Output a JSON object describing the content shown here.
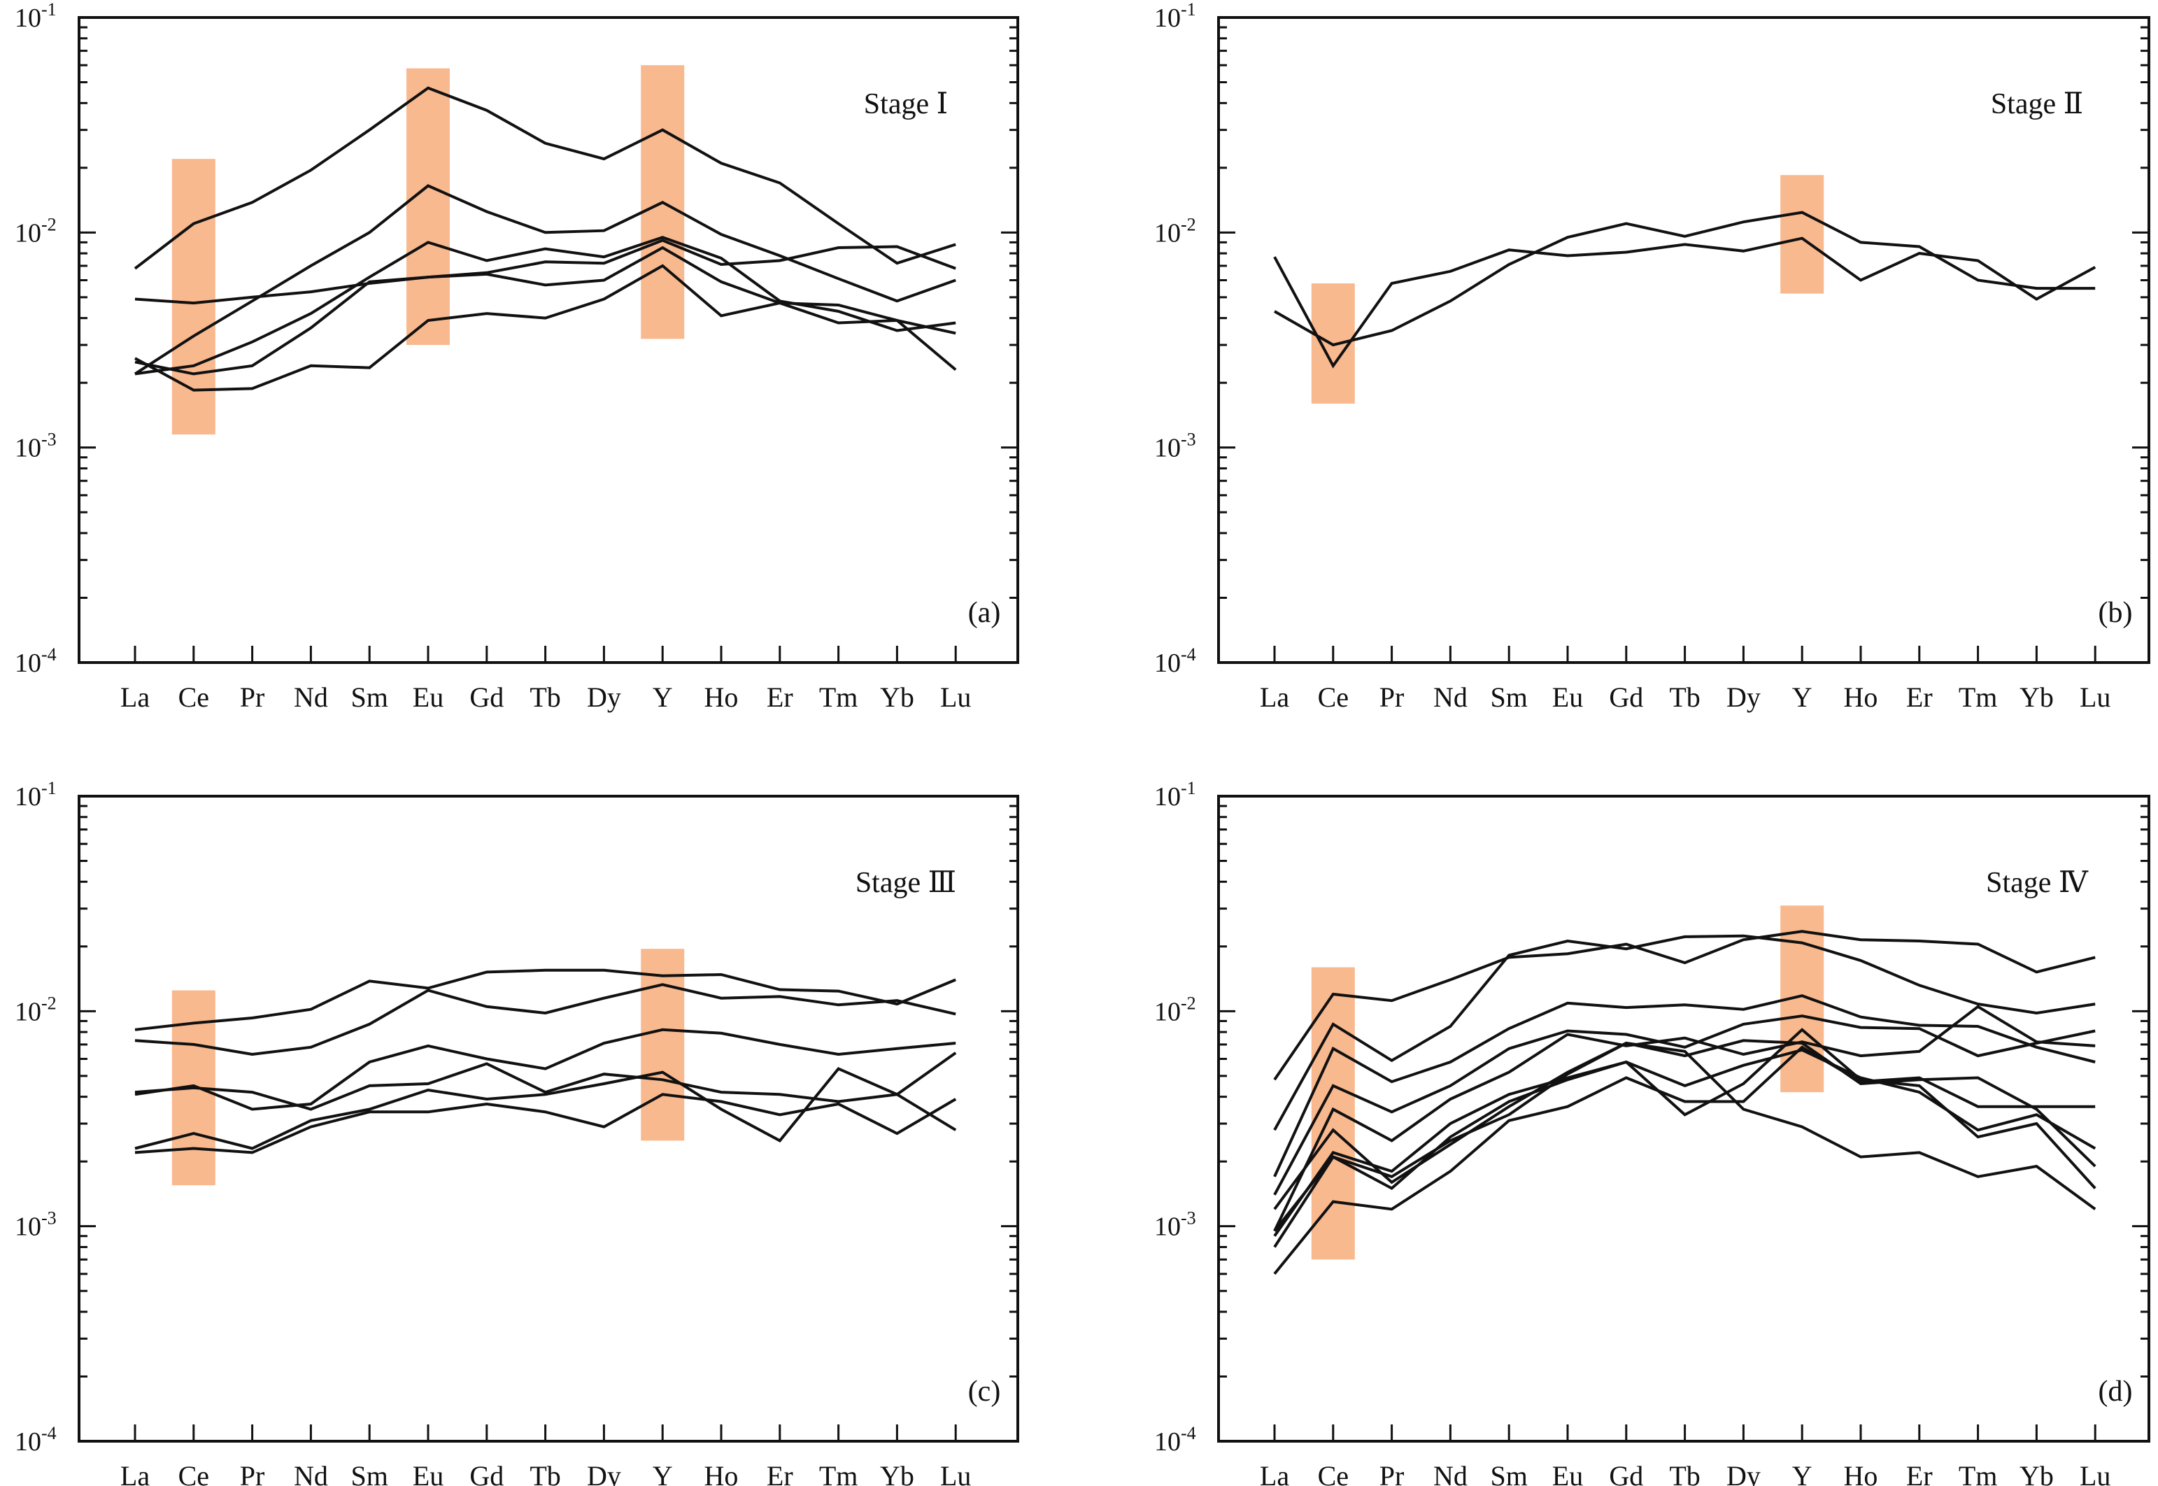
{
  "figure": {
    "accent_color": "#f9b98f",
    "line_color": "#111111",
    "x_categories": [
      "La",
      "Ce",
      "Pr",
      "Nd",
      "Sm",
      "Eu",
      "Gd",
      "Tb",
      "Dy",
      "Y",
      "Ho",
      "Er",
      "Tm",
      "Yb",
      "Lu"
    ],
    "y_tick_labels": [
      {
        "base": "10",
        "exp": "-1"
      },
      {
        "base": "10",
        "exp": "-2"
      },
      {
        "base": "10",
        "exp": "-3"
      },
      {
        "base": "10",
        "exp": "-4"
      }
    ]
  },
  "chart_data": [
    {
      "type": "line",
      "title": "Stage Ⅰ",
      "panel_label": "(a)",
      "y_scale": "log",
      "ylim": [
        0.0001,
        0.1
      ],
      "grid": false,
      "categories": [
        "La",
        "Ce",
        "Pr",
        "Nd",
        "Sm",
        "Eu",
        "Gd",
        "Tb",
        "Dy",
        "Y",
        "Ho",
        "Er",
        "Tm",
        "Yb",
        "Lu"
      ],
      "highlight_bands": [
        {
          "category": "Ce",
          "range": [
            0.00115,
            0.022
          ]
        },
        {
          "category": "Eu",
          "range": [
            0.003,
            0.058
          ]
        },
        {
          "category": "Y",
          "range": [
            0.0032,
            0.06
          ]
        }
      ],
      "series": [
        {
          "values": [
            0.0068,
            0.011,
            0.0138,
            0.0195,
            0.03,
            0.047,
            0.037,
            0.026,
            0.022,
            0.03,
            0.021,
            0.017,
            0.011,
            0.0072,
            0.0088
          ]
        },
        {
          "values": [
            0.0022,
            0.0033,
            0.0048,
            0.007,
            0.01,
            0.0165,
            0.0125,
            0.01,
            0.0102,
            0.0138,
            0.0098,
            0.0078,
            0.0061,
            0.0048,
            0.006
          ]
        },
        {
          "values": [
            0.0049,
            0.0047,
            0.005,
            0.0053,
            0.0058,
            0.0062,
            0.0065,
            0.0073,
            0.0072,
            0.0092,
            0.0071,
            0.0074,
            0.0085,
            0.0086,
            0.0068
          ]
        },
        {
          "values": [
            0.0022,
            0.0024,
            0.0031,
            0.0042,
            0.0062,
            0.009,
            0.0074,
            0.0084,
            0.0077,
            0.0095,
            0.0076,
            0.0048,
            0.0043,
            0.0035,
            0.0038
          ]
        },
        {
          "values": [
            0.0025,
            0.0022,
            0.0024,
            0.0036,
            0.0059,
            0.0062,
            0.0064,
            0.0057,
            0.006,
            0.0085,
            0.0059,
            0.0047,
            0.0046,
            0.0039,
            0.0023
          ]
        },
        {
          "values": [
            0.0026,
            0.00185,
            0.00188,
            0.0024,
            0.00235,
            0.0039,
            0.0042,
            0.004,
            0.0049,
            0.007,
            0.0041,
            0.0047,
            0.0038,
            0.0039,
            0.0034
          ]
        }
      ]
    },
    {
      "type": "line",
      "title": "Stage Ⅱ",
      "panel_label": "(b)",
      "y_scale": "log",
      "ylim": [
        0.0001,
        0.1
      ],
      "grid": false,
      "categories": [
        "La",
        "Ce",
        "Pr",
        "Nd",
        "Sm",
        "Eu",
        "Gd",
        "Tb",
        "Dy",
        "Y",
        "Ho",
        "Er",
        "Tm",
        "Yb",
        "Lu"
      ],
      "highlight_bands": [
        {
          "category": "Ce",
          "range": [
            0.0016,
            0.0058
          ]
        },
        {
          "category": "Y",
          "range": [
            0.0052,
            0.0185
          ]
        }
      ],
      "series": [
        {
          "values": [
            0.0077,
            0.0024,
            0.0058,
            0.0066,
            0.0083,
            0.0078,
            0.0081,
            0.0088,
            0.0082,
            0.0094,
            0.006,
            0.008,
            0.0074,
            0.0049,
            0.0069
          ]
        },
        {
          "values": [
            0.0043,
            0.003,
            0.0035,
            0.0048,
            0.0071,
            0.0095,
            0.011,
            0.0096,
            0.0112,
            0.0124,
            0.009,
            0.0086,
            0.006,
            0.0055,
            0.0055
          ]
        }
      ]
    },
    {
      "type": "line",
      "title": "Stage Ⅲ",
      "panel_label": "(c)",
      "y_scale": "log",
      "ylim": [
        0.0001,
        0.1
      ],
      "grid": false,
      "categories": [
        "La",
        "Ce",
        "Pr",
        "Nd",
        "Sm",
        "Eu",
        "Gd",
        "Tb",
        "Dy",
        "Y",
        "Ho",
        "Er",
        "Tm",
        "Yb",
        "Lu"
      ],
      "highlight_bands": [
        {
          "category": "Ce",
          "range": [
            0.00155,
            0.0125
          ]
        },
        {
          "category": "Y",
          "range": [
            0.0025,
            0.0195
          ]
        }
      ],
      "series": [
        {
          "values": [
            0.0082,
            0.0088,
            0.0093,
            0.0102,
            0.0138,
            0.0128,
            0.0152,
            0.0155,
            0.0155,
            0.0146,
            0.0148,
            0.0126,
            0.0124,
            0.0108,
            0.014
          ]
        },
        {
          "values": [
            0.0073,
            0.007,
            0.0063,
            0.0068,
            0.0087,
            0.0125,
            0.0105,
            0.0098,
            0.0115,
            0.0133,
            0.0115,
            0.0117,
            0.0107,
            0.0112,
            0.0097
          ]
        },
        {
          "values": [
            0.0041,
            0.0045,
            0.0035,
            0.0037,
            0.0058,
            0.0069,
            0.006,
            0.0054,
            0.0071,
            0.0082,
            0.0079,
            0.007,
            0.0063,
            0.0067,
            0.0071
          ]
        },
        {
          "values": [
            0.0042,
            0.0044,
            0.0042,
            0.0035,
            0.0045,
            0.0046,
            0.0057,
            0.0042,
            0.0051,
            0.0048,
            0.0042,
            0.0041,
            0.0038,
            0.0041,
            0.0064
          ]
        },
        {
          "values": [
            0.0023,
            0.0027,
            0.0023,
            0.0031,
            0.0035,
            0.0043,
            0.0039,
            0.0041,
            0.0046,
            0.0052,
            0.0035,
            0.0025,
            0.0054,
            0.0041,
            0.0028
          ]
        },
        {
          "values": [
            0.0022,
            0.0023,
            0.0022,
            0.0029,
            0.0034,
            0.0034,
            0.0037,
            0.0034,
            0.0029,
            0.0041,
            0.0038,
            0.0033,
            0.0037,
            0.0027,
            0.0039
          ]
        }
      ]
    },
    {
      "type": "line",
      "title": "Stage Ⅳ",
      "panel_label": "(d)",
      "y_scale": "log",
      "ylim": [
        0.0001,
        0.1
      ],
      "grid": false,
      "categories": [
        "La",
        "Ce",
        "Pr",
        "Nd",
        "Sm",
        "Eu",
        "Gd",
        "Tb",
        "Dy",
        "Y",
        "Ho",
        "Er",
        "Tm",
        "Yb",
        "Lu"
      ],
      "highlight_bands": [
        {
          "category": "Ce",
          "range": [
            0.0007,
            0.016
          ]
        },
        {
          "category": "Y",
          "range": [
            0.0042,
            0.031
          ]
        }
      ],
      "series": [
        {
          "values": [
            0.0048,
            0.012,
            0.0112,
            0.014,
            0.0178,
            0.0185,
            0.0205,
            0.0168,
            0.0215,
            0.0235,
            0.0215,
            0.0212,
            0.0205,
            0.0152,
            0.0178
          ]
        },
        {
          "values": [
            0.0028,
            0.0087,
            0.0059,
            0.0085,
            0.0182,
            0.0212,
            0.0195,
            0.0222,
            0.0224,
            0.0208,
            0.0172,
            0.0132,
            0.0108,
            0.0098,
            0.0108
          ]
        },
        {
          "values": [
            0.0017,
            0.0067,
            0.0047,
            0.0058,
            0.0083,
            0.0109,
            0.0104,
            0.0107,
            0.0102,
            0.0118,
            0.0094,
            0.0086,
            0.0085,
            0.0068,
            0.0058
          ]
        },
        {
          "values": [
            0.0014,
            0.0045,
            0.0034,
            0.0045,
            0.0067,
            0.0081,
            0.0078,
            0.0068,
            0.0087,
            0.0095,
            0.0084,
            0.0083,
            0.0062,
            0.0071,
            0.0081
          ]
        },
        {
          "values": [
            0.00095,
            0.0035,
            0.0025,
            0.0039,
            0.0052,
            0.0078,
            0.0069,
            0.0075,
            0.0063,
            0.0072,
            0.0062,
            0.0065,
            0.0105,
            0.0072,
            0.0069
          ]
        },
        {
          "values": [
            0.0012,
            0.0028,
            0.0016,
            0.0024,
            0.0036,
            0.0052,
            0.0071,
            0.0062,
            0.0073,
            0.0071,
            0.0046,
            0.0048,
            0.0049,
            0.0035,
            0.0019
          ]
        },
        {
          "values": [
            0.0009,
            0.0022,
            0.0018,
            0.003,
            0.0041,
            0.0049,
            0.0058,
            0.0045,
            0.0056,
            0.0066,
            0.0049,
            0.0042,
            0.0028,
            0.0033,
            0.0023
          ]
        },
        {
          "values": [
            0.0008,
            0.0021,
            0.0015,
            0.0026,
            0.0038,
            0.0048,
            0.0058,
            0.0033,
            0.0046,
            0.0082,
            0.0048,
            0.0045,
            0.0026,
            0.003,
            0.0015
          ]
        },
        {
          "values": [
            0.0006,
            0.0013,
            0.0012,
            0.0018,
            0.0031,
            0.0036,
            0.0049,
            0.0038,
            0.0038,
            0.0068,
            0.0047,
            0.0049,
            0.0036,
            0.0036,
            0.0036
          ]
        },
        {
          "values": [
            0.00095,
            0.0021,
            0.0017,
            0.0025,
            0.0033,
            0.0051,
            0.0071,
            0.0065,
            0.0035,
            0.0029,
            0.0021,
            0.0022,
            0.0017,
            0.0019,
            0.0012
          ]
        }
      ]
    }
  ]
}
